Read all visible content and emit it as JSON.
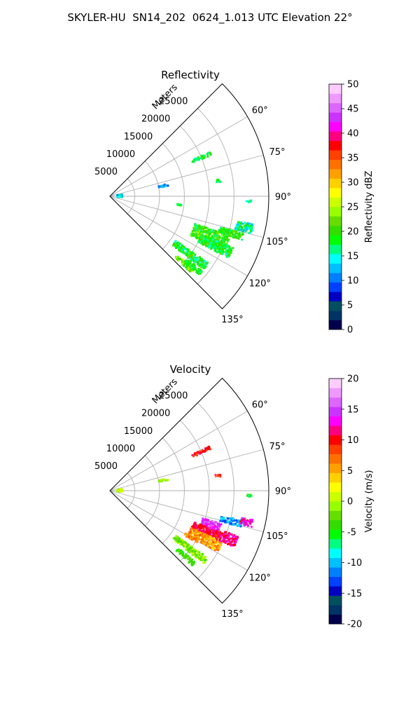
{
  "figure": {
    "title": "SKYLER-HU  SN14_202  0624_1.013 UTC Elevation 22°"
  },
  "colors": {
    "grid": "#b0b0b0",
    "frame": "#000000",
    "reflectivity_scale": [
      "#00004c",
      "#003366",
      "#005060",
      "#0000c0",
      "#0040ff",
      "#0080ff",
      "#00c0ff",
      "#00ffff",
      "#00ff80",
      "#00ff00",
      "#33dd00",
      "#66dd00",
      "#99ff00",
      "#ccff00",
      "#ffff00",
      "#ffd000",
      "#ffa000",
      "#ff7000",
      "#ff4000",
      "#ff0000",
      "#ff0080",
      "#ff00ff",
      "#cc33ff",
      "#dd66ff",
      "#ee99ff",
      "#ffccff"
    ],
    "velocity_scale": [
      "#00004c",
      "#003366",
      "#005060",
      "#0000c0",
      "#0040ff",
      "#0080ff",
      "#00c0ff",
      "#00ffff",
      "#00ff80",
      "#00ff00",
      "#33dd00",
      "#66dd00",
      "#99ff00",
      "#ccff00",
      "#ffff00",
      "#ffd000",
      "#ffa000",
      "#ff7000",
      "#ff4000",
      "#ff0000",
      "#ff0080",
      "#ff00ff",
      "#cc33ff",
      "#dd66ff",
      "#ee99ff",
      "#ffccff"
    ]
  },
  "chart_data": [
    {
      "type": "heatmap",
      "projection": "polar-sector",
      "title": "Reflectivity",
      "radial_label": "Meters",
      "radial_ticks": [
        5000,
        10000,
        15000,
        20000,
        25000
      ],
      "r_max": 32000,
      "theta_ticks": [
        "60°",
        "75°",
        "90°",
        "105°",
        "120°",
        "135°"
      ],
      "theta_tick_values": [
        60,
        75,
        90,
        105,
        120,
        135
      ],
      "theta_range": [
        45,
        135
      ],
      "grid": true,
      "colorbar": {
        "label": "Reflectivity dBZ",
        "min": 0,
        "max": 50,
        "ticks": [
          0,
          5,
          10,
          15,
          20,
          25,
          30,
          35,
          40,
          45,
          50
        ]
      },
      "echo_regions": [
        {
          "az": 112,
          "r": [
            18000,
            25500
          ],
          "w": 8,
          "v": [
            16,
            24
          ]
        },
        {
          "az": 115,
          "r": [
            20000,
            27000
          ],
          "w": 5,
          "v": [
            15,
            22
          ]
        },
        {
          "az": 126,
          "r": [
            16000,
            24000
          ],
          "w": 4,
          "v": [
            14,
            22
          ]
        },
        {
          "az": 132,
          "r": [
            18000,
            22500
          ],
          "w": 2.5,
          "v": [
            18,
            26
          ]
        },
        {
          "az": 130,
          "r": [
            20000,
            24000
          ],
          "w": 2.5,
          "v": [
            16,
            21
          ]
        },
        {
          "az": 103,
          "r": [
            26000,
            29500
          ],
          "w": 4,
          "v": [
            12,
            20
          ]
        },
        {
          "az": 107,
          "r": [
            23000,
            28000
          ],
          "w": 3,
          "v": [
            16,
            22
          ]
        },
        {
          "az": 67,
          "r": [
            18000,
            22000
          ],
          "w": 2,
          "v": [
            15,
            20
          ]
        },
        {
          "az": 82,
          "r": [
            21500,
            22500
          ],
          "w": 1.5,
          "v": [
            16,
            20
          ]
        },
        {
          "az": 92,
          "r": [
            27500,
            28500
          ],
          "w": 1,
          "v": [
            13,
            18
          ]
        },
        {
          "az": 97,
          "r": [
            13500,
            14500
          ],
          "w": 1,
          "v": [
            15,
            19
          ]
        },
        {
          "az": 88,
          "r": [
            1500,
            2500
          ],
          "w": 14,
          "v": [
            10,
            17
          ]
        },
        {
          "az": 79,
          "r": [
            10000,
            12000
          ],
          "w": 2,
          "v": [
            8,
            14
          ]
        }
      ]
    },
    {
      "type": "heatmap",
      "projection": "polar-sector",
      "title": "Velocity",
      "radial_label": "Meters",
      "radial_ticks": [
        5000,
        10000,
        15000,
        20000,
        25000
      ],
      "r_max": 32000,
      "theta_ticks": [
        "60°",
        "75°",
        "90°",
        "105°",
        "120°",
        "135°"
      ],
      "theta_tick_values": [
        60,
        75,
        90,
        105,
        120,
        135
      ],
      "theta_range": [
        45,
        135
      ],
      "grid": true,
      "colorbar": {
        "label": "Velocity (m/s)",
        "min": -20,
        "max": 20,
        "ticks": [
          -20,
          -15,
          -10,
          -5,
          0,
          5,
          10,
          15,
          20
        ]
      },
      "echo_regions": [
        {
          "az": 109,
          "r": [
            19500,
            23500
          ],
          "w": 5,
          "v": [
            12,
            17
          ]
        },
        {
          "az": 113,
          "r": [
            18000,
            24000
          ],
          "w": 5,
          "v": [
            9,
            12
          ]
        },
        {
          "az": 117,
          "r": [
            18000,
            25000
          ],
          "w": 5,
          "v": [
            3,
            8
          ]
        },
        {
          "az": 112,
          "r": [
            24000,
            27500
          ],
          "w": 5,
          "v": [
            10,
            13
          ]
        },
        {
          "az": 104,
          "r": [
            23000,
            27500
          ],
          "w": 3,
          "v": [
            -13,
            -9
          ]
        },
        {
          "az": 103,
          "r": [
            27000,
            29500
          ],
          "w": 3,
          "v": [
            10,
            15
          ]
        },
        {
          "az": 126,
          "r": [
            16000,
            24000
          ],
          "w": 3.5,
          "v": [
            -4,
            1
          ]
        },
        {
          "az": 131,
          "r": [
            18000,
            22500
          ],
          "w": 2.5,
          "v": [
            -5,
            -2
          ]
        },
        {
          "az": 120,
          "r": [
            17500,
            20500
          ],
          "w": 2,
          "v": [
            4,
            8
          ]
        },
        {
          "az": 67,
          "r": [
            18000,
            22000
          ],
          "w": 2,
          "v": [
            8,
            12
          ]
        },
        {
          "az": 82,
          "r": [
            21500,
            22500
          ],
          "w": 1.5,
          "v": [
            5,
            12
          ]
        },
        {
          "az": 92,
          "r": [
            27500,
            28500
          ],
          "w": 1,
          "v": [
            -8,
            -2
          ]
        },
        {
          "az": 88,
          "r": [
            1500,
            2500
          ],
          "w": 14,
          "v": [
            -2,
            2
          ]
        },
        {
          "az": 79,
          "r": [
            10000,
            12000
          ],
          "w": 2,
          "v": [
            -3,
            1
          ]
        }
      ]
    }
  ]
}
